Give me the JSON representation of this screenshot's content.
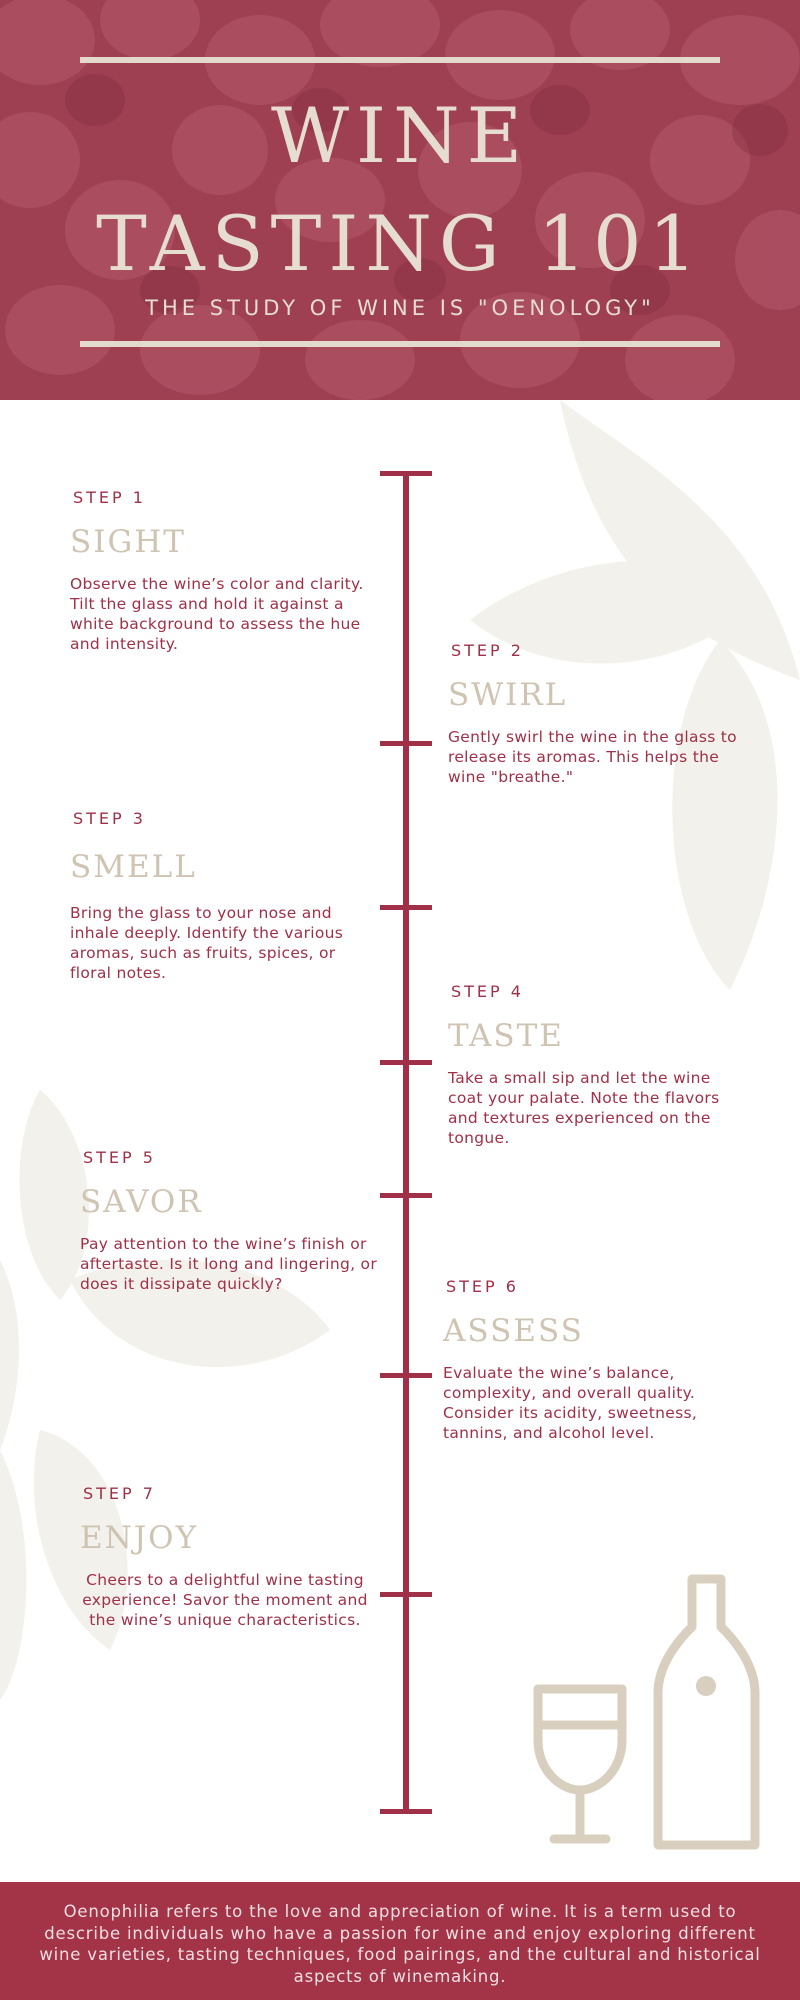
{
  "header": {
    "title": "WINE TASTING 101",
    "subtitle": "THE STUDY OF WINE IS \"OENOLOGY\""
  },
  "steps": [
    {
      "step_label": "STEP 1",
      "name": "SIGHT",
      "description": "Observe the wine’s color and clarity. Tilt the glass and hold it against a white background to assess the hue and intensity."
    },
    {
      "step_label": "STEP 2",
      "name": "SWIRL",
      "description": "Gently swirl the wine in the glass to release its aromas. This helps the wine \"breathe.\""
    },
    {
      "step_label": "STEP 3",
      "name": "SMELL",
      "description": "Bring the glass to your nose and inhale deeply. Identify the various aromas, such as fruits, spices, or floral notes."
    },
    {
      "step_label": "STEP 4",
      "name": "TASTE",
      "description": "Take a small sip and let the wine coat your palate. Note the flavors and textures experienced on the tongue."
    },
    {
      "step_label": "STEP 5",
      "name": "SAVOR",
      "description": "Pay attention to the wine’s finish or aftertaste. Is it long and lingering, or does it dissipate quickly?"
    },
    {
      "step_label": "STEP 6",
      "name": "ASSESS",
      "description": "Evaluate the wine’s balance, complexity, and overall quality. Consider its acidity, sweetness, tannins, and alcohol level."
    },
    {
      "step_label": "STEP 7",
      "name": "ENJOY",
      "description": "Cheers to a delightful wine tasting experience! Savor the moment and the wine’s unique characteristics."
    }
  ],
  "footer": {
    "text": "Oenophilia refers to the love and appreciation of wine. It is a term used to describe individuals who have a passion for wine and enjoy exploring different wine varieties, tasting techniques, food pairings, and the cultural and historical aspects of winemaking."
  },
  "colors": {
    "wine_red": "#a03048",
    "cream": "#e6ddd0",
    "header_bg": "#9e3f52"
  },
  "icons": [
    "wine-glass-icon",
    "wine-bottle-icon"
  ]
}
